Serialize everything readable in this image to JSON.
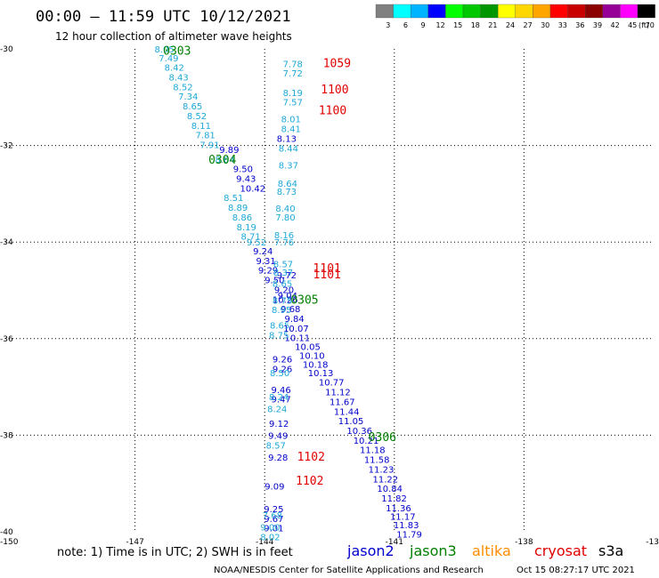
{
  "chart_data": {
    "type": "scatter",
    "title": "00:00 – 11:59 UTC 10/12/2021",
    "subtitle": "12 hour collection of altimeter wave heights",
    "x_ticks": [
      "-150",
      "-147",
      "-144",
      "-141",
      "-138",
      "-13"
    ],
    "y_ticks": [
      "-30",
      "-32",
      "-34",
      "-36",
      "-38",
      "-40"
    ],
    "xlim": [
      -150,
      -135
    ],
    "ylim": [
      -40,
      -30
    ],
    "grid": true,
    "legend": {
      "placement": "top-right",
      "unit": "(ft)",
      "labels": [
        "3",
        "6",
        "9",
        "12",
        "15",
        "18",
        "21",
        "24",
        "27",
        "30",
        "33",
        "36",
        "39",
        "42",
        "45",
        "70"
      ],
      "colors": [
        "#808080",
        "#00ffff",
        "#00b4ff",
        "#0000ff",
        "#00ff00",
        "#00c800",
        "#009600",
        "#ffff00",
        "#ffd700",
        "#ffa500",
        "#ff0000",
        "#c80000",
        "#8b0000",
        "#960096",
        "#ff00ff",
        "#000000"
      ]
    },
    "series": [
      {
        "name": "jason2",
        "color": "#0000cc",
        "points": [
          {
            "lon": -145.05,
            "lat": -32.08,
            "swh": "9.89"
          },
          {
            "lon": -144.73,
            "lat": -32.48,
            "swh": "9.50"
          },
          {
            "lon": -144.66,
            "lat": -32.68,
            "swh": "9.43"
          },
          {
            "lon": -144.57,
            "lat": -32.88,
            "swh": "10.42"
          },
          {
            "lon": -144.27,
            "lat": -34.18,
            "swh": "9.24"
          },
          {
            "lon": -144.2,
            "lat": -34.38,
            "swh": "9.31"
          },
          {
            "lon": -144.15,
            "lat": -34.58,
            "swh": "9.29"
          },
          {
            "lon": -144.0,
            "lat": -34.78,
            "swh": "9.50"
          },
          {
            "lon": -143.78,
            "lat": -34.98,
            "swh": "9.20"
          },
          {
            "lon": -143.82,
            "lat": -35.18,
            "swh": "10.26"
          },
          {
            "lon": -143.63,
            "lat": -35.38,
            "swh": "9.68"
          },
          {
            "lon": -143.54,
            "lat": -35.58,
            "swh": "9.84"
          },
          {
            "lon": -143.57,
            "lat": -35.78,
            "swh": "10.07"
          },
          {
            "lon": -143.54,
            "lat": -35.98,
            "swh": "10.11"
          },
          {
            "lon": -143.3,
            "lat": -36.16,
            "swh": "10.05"
          },
          {
            "lon": -143.2,
            "lat": -36.34,
            "swh": "10.10"
          },
          {
            "lon": -143.12,
            "lat": -36.53,
            "swh": "10.18"
          },
          {
            "lon": -143.0,
            "lat": -36.7,
            "swh": "10.13"
          },
          {
            "lon": -142.75,
            "lat": -36.9,
            "swh": "10.77"
          },
          {
            "lon": -142.6,
            "lat": -37.1,
            "swh": "11.12"
          },
          {
            "lon": -142.5,
            "lat": -37.3,
            "swh": "11.67"
          },
          {
            "lon": -142.4,
            "lat": -37.5,
            "swh": "11.44"
          },
          {
            "lon": -142.3,
            "lat": -37.7,
            "swh": "11.05"
          },
          {
            "lon": -142.1,
            "lat": -37.9,
            "swh": "10.36"
          },
          {
            "lon": -141.95,
            "lat": -38.1,
            "swh": "10.21"
          },
          {
            "lon": -141.8,
            "lat": -38.3,
            "swh": "11.18"
          },
          {
            "lon": -141.7,
            "lat": -38.5,
            "swh": "11.58"
          },
          {
            "lon": -141.6,
            "lat": -38.7,
            "swh": "11.23"
          },
          {
            "lon": -141.5,
            "lat": -38.9,
            "swh": "11.22"
          },
          {
            "lon": -141.4,
            "lat": -39.1,
            "swh": "10.84"
          },
          {
            "lon": -141.3,
            "lat": -39.3,
            "swh": "11.82"
          },
          {
            "lon": -141.2,
            "lat": -39.5,
            "swh": "11.36"
          },
          {
            "lon": -141.1,
            "lat": -39.68,
            "swh": "11.17"
          },
          {
            "lon": -141.02,
            "lat": -39.85,
            "swh": "11.83"
          },
          {
            "lon": -140.95,
            "lat": -40.05,
            "swh": "11.79"
          },
          {
            "lon": -143.72,
            "lat": -31.85,
            "swh": "8.13"
          },
          {
            "lon": -143.72,
            "lat": -34.68,
            "swh": "9.72"
          },
          {
            "lon": -143.7,
            "lat": -35.1,
            "swh": "9.04"
          },
          {
            "lon": -143.82,
            "lat": -36.42,
            "swh": "9.26"
          },
          {
            "lon": -143.82,
            "lat": -36.62,
            "swh": "9.26"
          },
          {
            "lon": -143.85,
            "lat": -37.05,
            "swh": "9.46"
          },
          {
            "lon": -143.85,
            "lat": -37.25,
            "swh": "9.47"
          },
          {
            "lon": -143.9,
            "lat": -37.75,
            "swh": "9.12"
          },
          {
            "lon": -143.92,
            "lat": -38.0,
            "swh": "9.49"
          },
          {
            "lon": -143.92,
            "lat": -38.45,
            "swh": "9.28"
          },
          {
            "lon": -144.0,
            "lat": -39.05,
            "swh": "9.09"
          },
          {
            "lon": -144.02,
            "lat": -39.52,
            "swh": "9.25"
          },
          {
            "lon": -144.02,
            "lat": -39.72,
            "swh": "9.67"
          },
          {
            "lon": -144.02,
            "lat": -39.92,
            "swh": "9.01"
          }
        ]
      },
      {
        "name": "jason3",
        "color": "#008000",
        "points": [
          {
            "lon": -146.35,
            "lat": -30.05,
            "swh": "0303"
          },
          {
            "lon": -145.3,
            "lat": -32.3,
            "swh": "0304"
          },
          {
            "lon": -143.4,
            "lat": -35.2,
            "swh": "0305"
          },
          {
            "lon": -141.6,
            "lat": -38.05,
            "swh": "0306"
          }
        ]
      },
      {
        "name": "altika",
        "color": "#ff8c00",
        "points": []
      },
      {
        "name": "cryosat",
        "color": "#e00000",
        "points": [
          {
            "lon": -142.65,
            "lat": -30.3,
            "swh": "1059"
          },
          {
            "lon": -142.7,
            "lat": -30.85,
            "swh": "1100"
          },
          {
            "lon": -142.75,
            "lat": -31.28,
            "swh": "1100"
          },
          {
            "lon": -142.88,
            "lat": -34.55,
            "swh": "1101"
          },
          {
            "lon": -142.88,
            "lat": -34.68,
            "swh": "1101"
          },
          {
            "lon": -143.25,
            "lat": -38.45,
            "swh": "1102"
          },
          {
            "lon": -143.28,
            "lat": -38.95,
            "swh": "1102"
          }
        ]
      },
      {
        "name": "s3a",
        "color": "#000000",
        "points": [
          {
            "lon": -143.58,
            "lat": -30.3,
            "swh": "7.78"
          },
          {
            "lon": -143.58,
            "lat": -30.5,
            "swh": "7.72"
          },
          {
            "lon": -143.58,
            "lat": -30.9,
            "swh": "8.19"
          },
          {
            "lon": -143.58,
            "lat": -31.1,
            "swh": "7.57"
          },
          {
            "lon": -143.62,
            "lat": -31.45,
            "swh": "8.01"
          },
          {
            "lon": -143.62,
            "lat": -31.65,
            "swh": "8.41"
          },
          {
            "lon": -143.68,
            "lat": -32.05,
            "swh": "8.44"
          },
          {
            "lon": -143.68,
            "lat": -32.4,
            "swh": "8.37"
          },
          {
            "lon": -143.7,
            "lat": -32.78,
            "swh": "8.64"
          },
          {
            "lon": -143.72,
            "lat": -32.95,
            "swh": "8.73"
          },
          {
            "lon": -143.75,
            "lat": -33.3,
            "swh": "8.40"
          },
          {
            "lon": -143.75,
            "lat": -33.48,
            "swh": "7.80"
          },
          {
            "lon": -143.78,
            "lat": -33.85,
            "swh": "8.16"
          },
          {
            "lon": -143.78,
            "lat": -34.0,
            "swh": "7.76"
          },
          {
            "lon": -143.8,
            "lat": -34.45,
            "swh": "8.57"
          },
          {
            "lon": -143.8,
            "lat": -34.62,
            "swh": "8.37"
          },
          {
            "lon": -143.82,
            "lat": -34.85,
            "swh": "8.65"
          },
          {
            "lon": -143.82,
            "lat": -35.2,
            "swh": "8.75"
          },
          {
            "lon": -143.84,
            "lat": -35.4,
            "swh": "8.95"
          },
          {
            "lon": -143.88,
            "lat": -35.72,
            "swh": "8.65"
          },
          {
            "lon": -143.9,
            "lat": -35.92,
            "swh": "8.75"
          },
          {
            "lon": -143.88,
            "lat": -36.7,
            "swh": "8.50"
          },
          {
            "lon": -143.9,
            "lat": -37.2,
            "swh": "8.24"
          },
          {
            "lon": -143.94,
            "lat": -37.45,
            "swh": "8.24"
          },
          {
            "lon": -143.97,
            "lat": -38.2,
            "swh": "8.57"
          },
          {
            "lon": -144.05,
            "lat": -39.65,
            "swh": "7.68"
          },
          {
            "lon": -144.1,
            "lat": -39.9,
            "swh": "9.00"
          },
          {
            "lon": -144.1,
            "lat": -40.1,
            "swh": "8.02"
          }
        ]
      }
    ],
    "track_a_points": [
      {
        "lon": -146.55,
        "lat": -30.0,
        "swh": "8.05"
      },
      {
        "lon": -146.45,
        "lat": -30.18,
        "swh": "7.49"
      },
      {
        "lon": -146.32,
        "lat": -30.38,
        "swh": "8.42"
      },
      {
        "lon": -146.22,
        "lat": -30.58,
        "swh": "8.43"
      },
      {
        "lon": -146.12,
        "lat": -30.78,
        "swh": "8.52"
      },
      {
        "lon": -146.0,
        "lat": -30.98,
        "swh": "7.34"
      },
      {
        "lon": -145.9,
        "lat": -31.18,
        "swh": "8.65"
      },
      {
        "lon": -145.8,
        "lat": -31.38,
        "swh": "8.52"
      },
      {
        "lon": -145.7,
        "lat": -31.58,
        "swh": "8.11"
      },
      {
        "lon": -145.6,
        "lat": -31.78,
        "swh": "7.81"
      },
      {
        "lon": -145.5,
        "lat": -31.98,
        "swh": "7.91"
      },
      {
        "lon": -145.15,
        "lat": -32.28,
        "swh": "8.64"
      },
      {
        "lon": -144.95,
        "lat": -33.08,
        "swh": "8.51"
      },
      {
        "lon": -144.85,
        "lat": -33.28,
        "swh": "8.89"
      },
      {
        "lon": -144.75,
        "lat": -33.48,
        "swh": "8.86"
      },
      {
        "lon": -144.65,
        "lat": -33.68,
        "swh": "8.19"
      },
      {
        "lon": -144.55,
        "lat": -33.88,
        "swh": "8.71"
      },
      {
        "lon": -144.42,
        "lat": -34.0,
        "swh": "9.52"
      }
    ]
  },
  "footer": {
    "note": "note: 1) Time is in UTC; 2) SWH is in feet",
    "credit": "NOAA/NESDIS Center for Satellite Applications and Research",
    "timestamp": "Oct 15 08:27:17 UTC 2021"
  }
}
